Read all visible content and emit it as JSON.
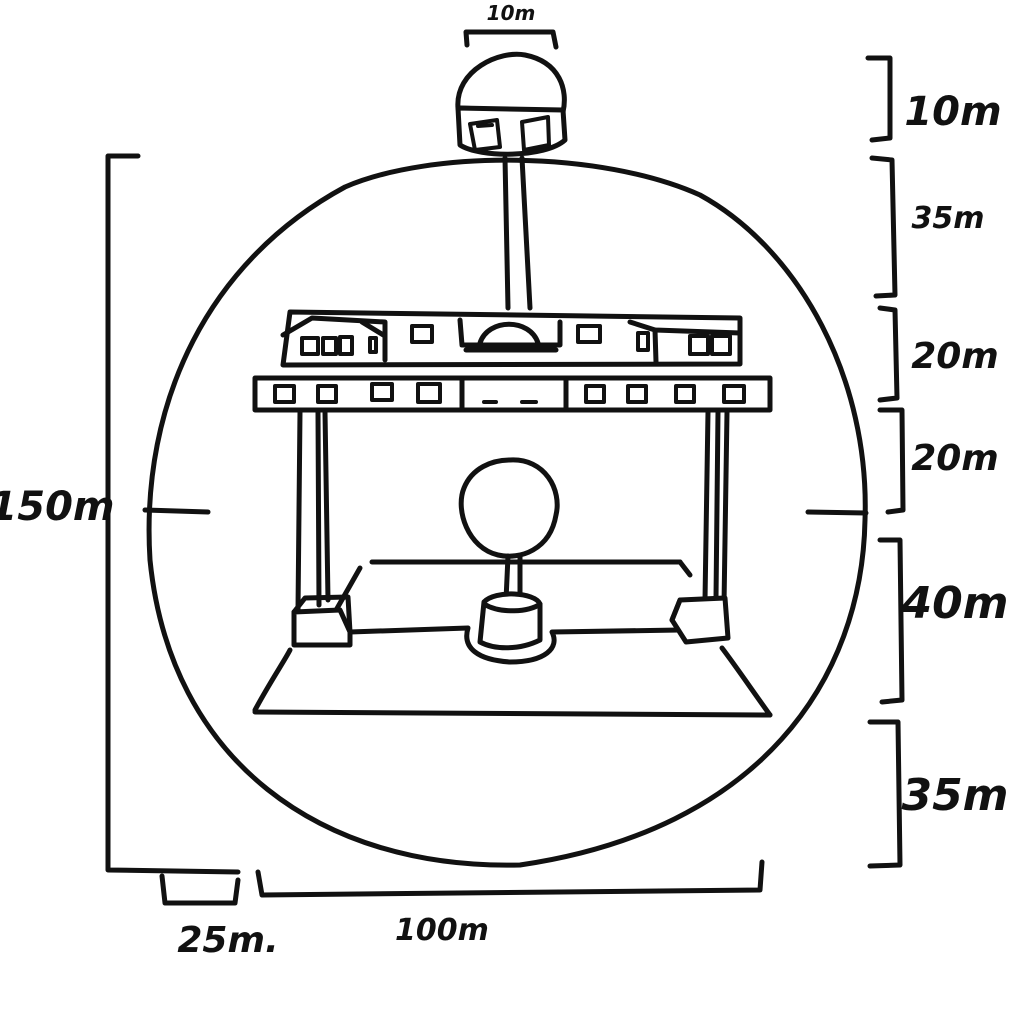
{
  "dimensions": {
    "dome_width": "10m",
    "total_height": "150m",
    "left_offset": "25m.",
    "base_width": "100m",
    "right_segments": [
      "10m",
      "35m",
      "20m",
      "20m",
      "40m",
      "35m"
    ]
  }
}
